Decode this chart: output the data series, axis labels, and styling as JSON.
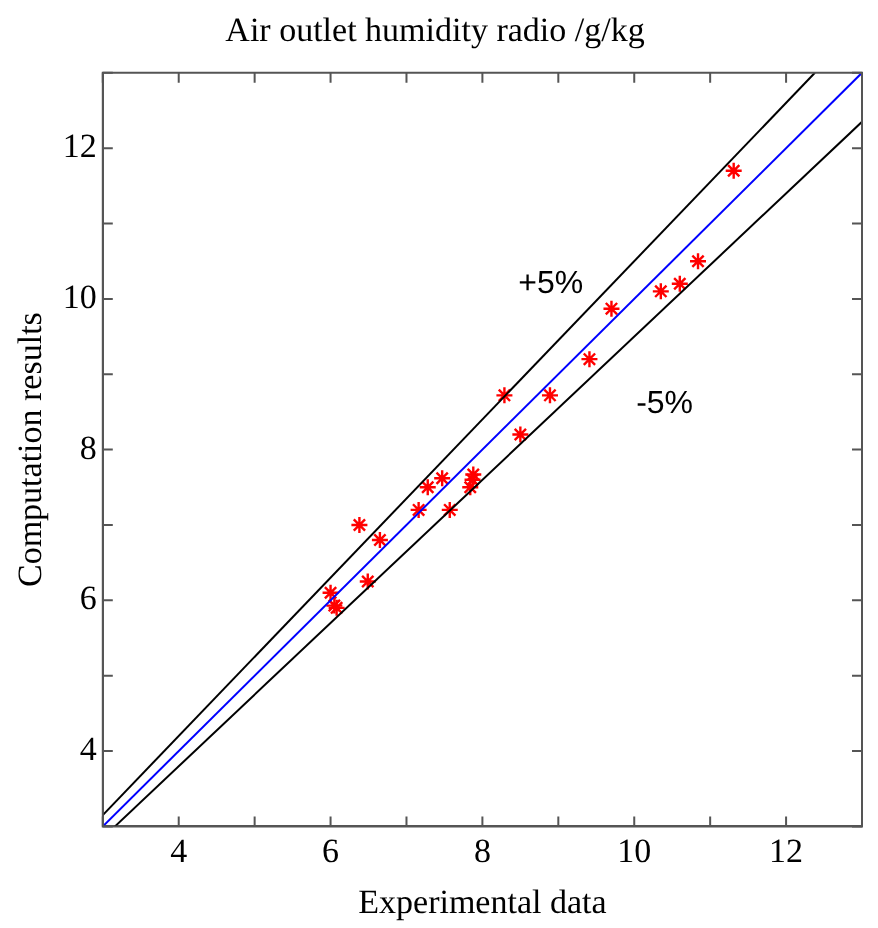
{
  "chart_data": {
    "type": "scatter",
    "title": "Air outlet humidity radio /g/kg",
    "xlabel": "Experimental data",
    "ylabel": "Computation results",
    "xlim": [
      3,
      13
    ],
    "ylim": [
      3,
      13
    ],
    "xticks": [
      {
        "value": 3,
        "label": null
      },
      4,
      {
        "value": 5,
        "label": null
      },
      6,
      {
        "value": 7,
        "label": null
      },
      8,
      {
        "value": 9,
        "label": null
      },
      10,
      {
        "value": 11,
        "label": null
      },
      12,
      {
        "value": 13,
        "label": null
      }
    ],
    "yticks": [
      {
        "value": 3,
        "label": null
      },
      4,
      {
        "value": 5,
        "label": null
      },
      6,
      {
        "value": 7,
        "label": null
      },
      8,
      {
        "value": 9,
        "label": null
      },
      10,
      {
        "value": 11,
        "label": null
      },
      12,
      {
        "value": 13,
        "label": null
      }
    ],
    "marker": "cross",
    "series": [
      {
        "type": "line",
        "color": "#0000ff",
        "marker": "none",
        "x": [
          3,
          13
        ],
        "values": [
          3,
          13
        ]
      },
      {
        "type": "line",
        "color": "#000000",
        "marker": "none",
        "x": [
          3,
          12.38
        ],
        "values": [
          3.15,
          13
        ]
      },
      {
        "type": "line",
        "color": "#000000",
        "marker": "none",
        "x": [
          3.16,
          13
        ],
        "values": [
          3,
          12.35
        ]
      },
      {
        "color": "#ff0000",
        "x": [
          6.0,
          6.05,
          6.08,
          6.38,
          6.49,
          6.65,
          7.16,
          7.28,
          7.47,
          7.57,
          7.84,
          7.87,
          7.88,
          8.29,
          8.5,
          8.89,
          9.41,
          9.7,
          10.35,
          10.6,
          10.84,
          11.31
        ],
        "values": [
          6.1,
          5.93,
          5.9,
          7.0,
          6.25,
          6.8,
          7.2,
          7.5,
          7.62,
          7.2,
          7.5,
          7.6,
          7.67,
          8.72,
          8.2,
          8.72,
          9.2,
          9.87,
          10.1,
          10.2,
          10.5,
          11.7
        ]
      }
    ],
    "annotations": [
      "+5%",
      "-5%"
    ]
  }
}
